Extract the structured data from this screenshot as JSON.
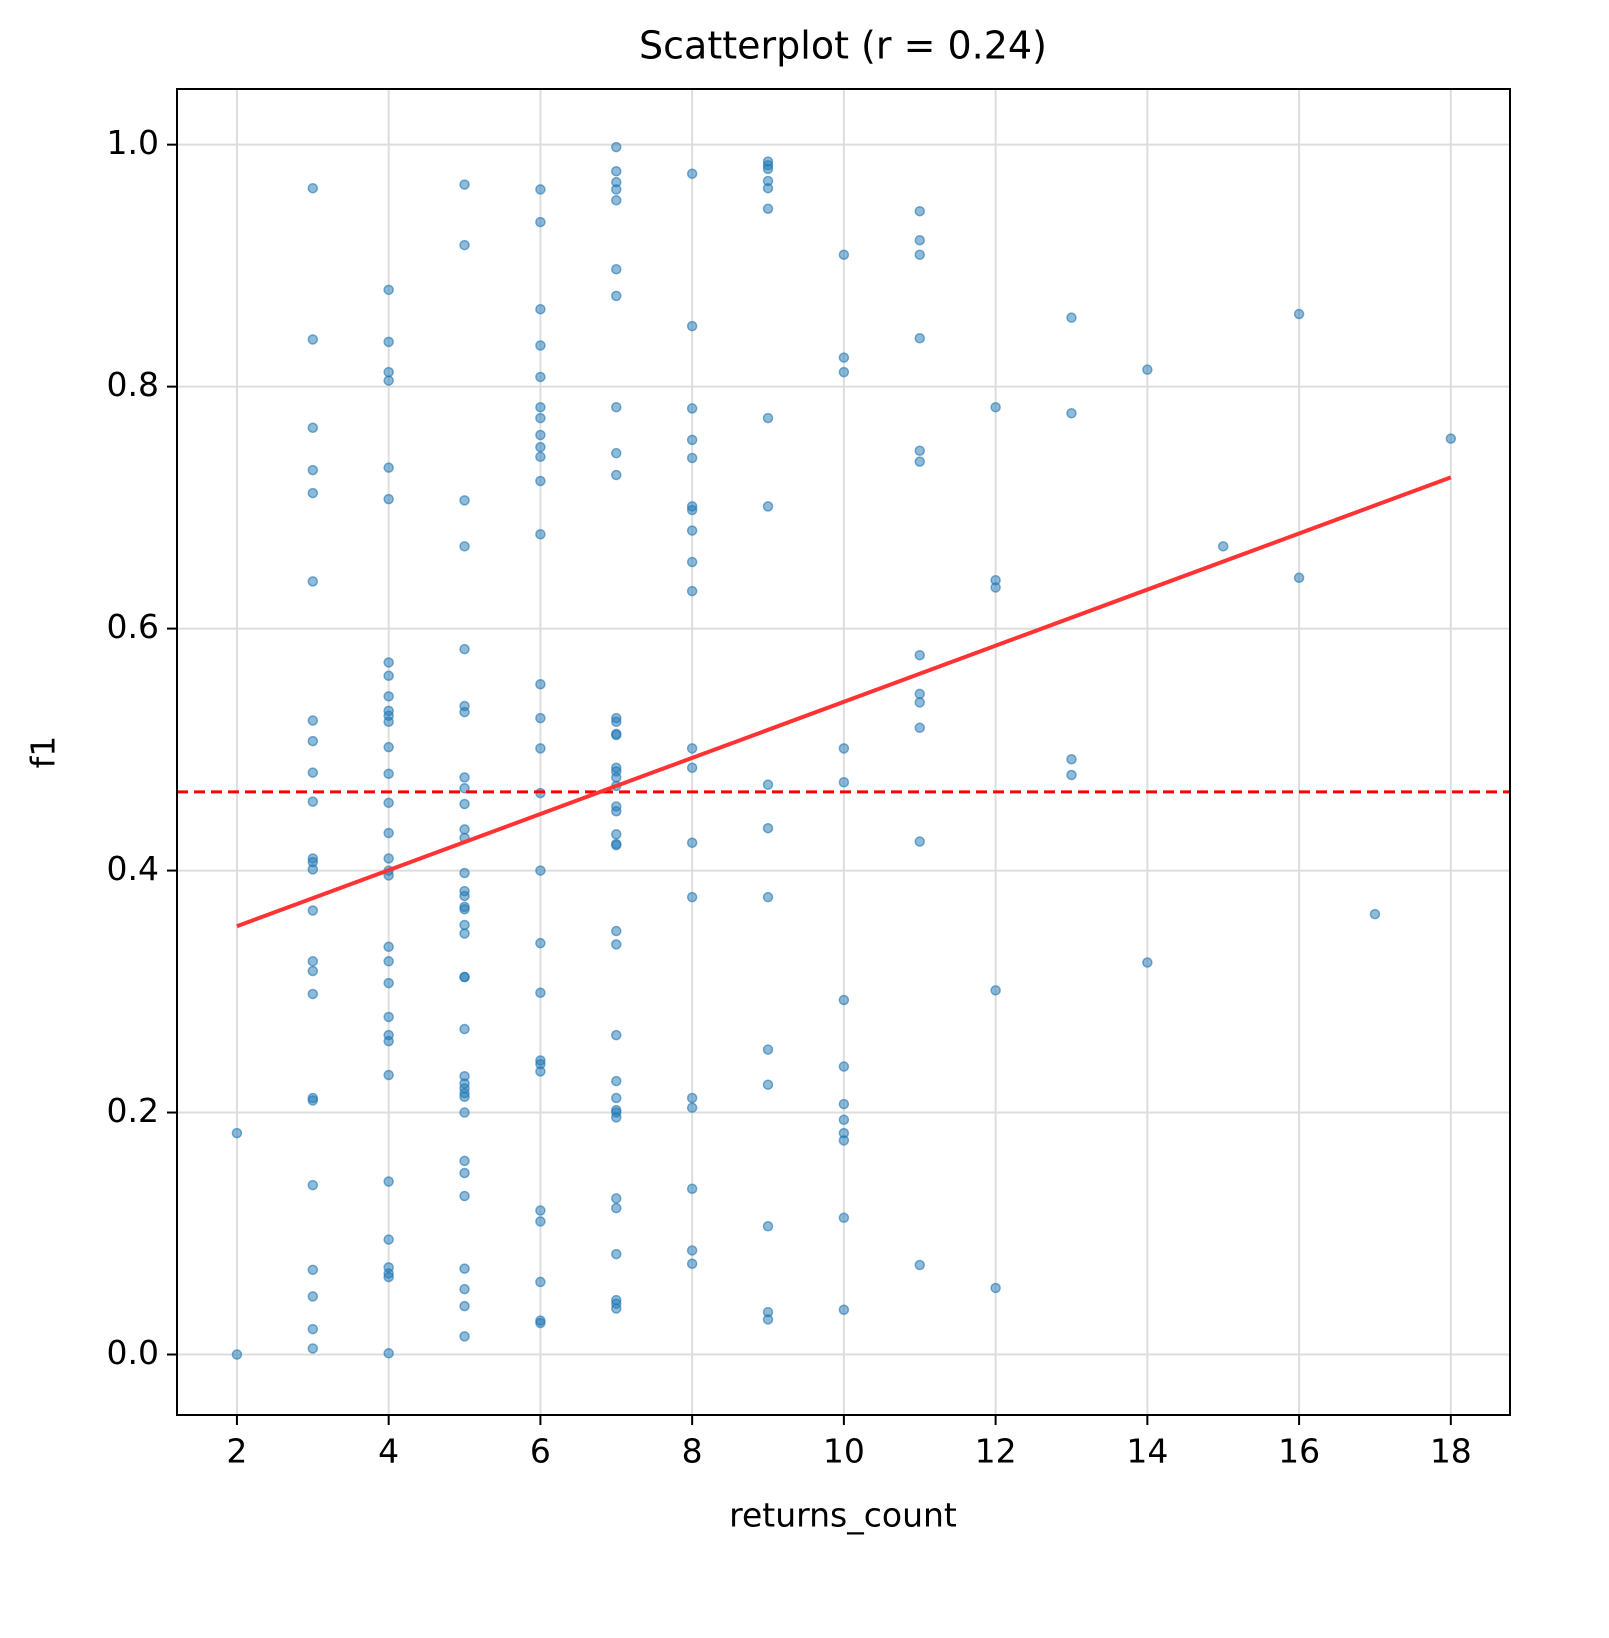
{
  "chart_data": {
    "type": "scatter",
    "title": "Scatterplot (r = 0.24)",
    "x_label": "returns_count",
    "y_label": "f1",
    "xlim": [
      1.21,
      18.78
    ],
    "ylim": [
      -0.05,
      1.046
    ],
    "xticks": [
      2,
      4,
      6,
      8,
      10,
      12,
      14,
      16,
      18
    ],
    "yticks": [
      {
        "value": 0,
        "label": "0.0"
      },
      0.2,
      0.4,
      0.6,
      0.8,
      {
        "value": 1,
        "label": "1.0"
      }
    ],
    "grid": true,
    "color": "#1f77b4",
    "x": [
      2,
      2,
      3,
      3,
      3,
      3,
      3,
      3,
      3,
      3,
      3,
      3,
      3,
      3,
      3,
      3,
      3,
      3,
      3,
      3,
      3,
      3,
      3,
      3,
      3,
      3,
      4,
      4,
      4,
      4,
      4,
      4,
      4,
      4,
      4,
      4,
      4,
      4,
      4,
      4,
      4,
      4,
      4,
      4,
      4,
      4,
      4,
      4,
      4,
      4,
      4,
      4,
      4,
      4,
      4,
      4,
      4,
      4,
      5,
      5,
      5,
      5,
      5,
      5,
      5,
      5,
      5,
      5,
      5,
      5,
      5,
      5,
      5,
      5,
      5,
      5,
      5,
      5,
      5,
      5,
      5,
      5,
      5,
      5,
      5,
      5,
      5,
      5,
      5,
      5,
      5,
      5,
      5,
      6,
      6,
      6,
      6,
      6,
      6,
      6,
      6,
      6,
      6,
      6,
      6,
      6,
      6,
      6,
      6,
      6,
      6,
      6,
      6,
      6,
      6,
      6,
      6,
      6,
      6,
      6,
      7,
      7,
      7,
      7,
      7,
      7,
      7,
      7,
      7,
      7,
      7,
      7,
      7,
      7,
      7,
      7,
      7,
      7,
      7,
      7,
      7,
      7,
      7,
      7,
      7,
      7,
      7,
      7,
      7,
      7,
      7,
      7,
      7,
      7,
      7,
      7,
      7,
      8,
      8,
      8,
      8,
      8,
      8,
      8,
      8,
      8,
      8,
      8,
      8,
      8,
      8,
      8,
      8,
      8,
      8,
      8,
      9,
      9,
      9,
      9,
      9,
      9,
      9,
      9,
      9,
      9,
      9,
      9,
      9,
      9,
      9,
      9,
      10,
      10,
      10,
      10,
      10,
      10,
      10,
      10,
      10,
      10,
      10,
      10,
      10,
      11,
      11,
      11,
      11,
      11,
      11,
      11,
      11,
      11,
      11,
      11,
      11,
      12,
      12,
      12,
      12,
      12,
      13,
      13,
      13,
      13,
      14,
      14,
      15,
      16,
      16,
      17,
      18
    ],
    "values": [
      0.183,
      0.0,
      0.964,
      0.839,
      0.766,
      0.731,
      0.712,
      0.639,
      0.524,
      0.507,
      0.481,
      0.457,
      0.41,
      0.407,
      0.401,
      0.367,
      0.325,
      0.317,
      0.298,
      0.212,
      0.21,
      0.14,
      0.07,
      0.048,
      0.021,
      0.005,
      0.88,
      0.837,
      0.812,
      0.805,
      0.733,
      0.707,
      0.572,
      0.561,
      0.544,
      0.532,
      0.528,
      0.523,
      0.502,
      0.48,
      0.456,
      0.431,
      0.41,
      0.4,
      0.396,
      0.337,
      0.325,
      0.307,
      0.279,
      0.264,
      0.259,
      0.231,
      0.143,
      0.095,
      0.072,
      0.067,
      0.064,
      0.001,
      0.967,
      0.917,
      0.706,
      0.668,
      0.583,
      0.536,
      0.531,
      0.477,
      0.468,
      0.455,
      0.434,
      0.427,
      0.398,
      0.383,
      0.379,
      0.37,
      0.368,
      0.355,
      0.348,
      0.312,
      0.312,
      0.269,
      0.23,
      0.224,
      0.22,
      0.216,
      0.213,
      0.2,
      0.16,
      0.15,
      0.131,
      0.071,
      0.054,
      0.04,
      0.015,
      0.963,
      0.936,
      0.864,
      0.834,
      0.808,
      0.783,
      0.774,
      0.76,
      0.75,
      0.742,
      0.722,
      0.678,
      0.554,
      0.526,
      0.501,
      0.464,
      0.4,
      0.34,
      0.299,
      0.243,
      0.24,
      0.234,
      0.119,
      0.11,
      0.06,
      0.028,
      0.026,
      0.998,
      0.978,
      0.969,
      0.963,
      0.954,
      0.897,
      0.875,
      0.783,
      0.745,
      0.727,
      0.526,
      0.523,
      0.513,
      0.512,
      0.485,
      0.482,
      0.477,
      0.47,
      0.453,
      0.449,
      0.43,
      0.422,
      0.421,
      0.35,
      0.339,
      0.264,
      0.226,
      0.212,
      0.202,
      0.2,
      0.196,
      0.129,
      0.121,
      0.083,
      0.045,
      0.042,
      0.038,
      0.976,
      0.85,
      0.782,
      0.756,
      0.741,
      0.701,
      0.698,
      0.681,
      0.655,
      0.631,
      0.501,
      0.485,
      0.423,
      0.378,
      0.212,
      0.204,
      0.137,
      0.086,
      0.075,
      0.986,
      0.983,
      0.98,
      0.97,
      0.964,
      0.947,
      0.774,
      0.701,
      0.471,
      0.435,
      0.378,
      0.252,
      0.223,
      0.106,
      0.035,
      0.029,
      0.909,
      0.824,
      0.812,
      0.501,
      0.473,
      0.293,
      0.238,
      0.207,
      0.194,
      0.183,
      0.177,
      0.113,
      0.037,
      0.945,
      0.921,
      0.909,
      0.84,
      0.747,
      0.738,
      0.578,
      0.546,
      0.539,
      0.518,
      0.424,
      0.074,
      0.783,
      0.64,
      0.634,
      0.301,
      0.055,
      0.857,
      0.778,
      0.492,
      0.479,
      0.814,
      0.324,
      0.668,
      0.86,
      0.642,
      0.364,
      0.757
    ],
    "regression_line": {
      "x": [
        2,
        18
      ],
      "y": [
        0.354,
        0.725
      ],
      "color": "#f33"
    },
    "mean_line": {
      "value": 0.465,
      "color": "#f00"
    }
  }
}
